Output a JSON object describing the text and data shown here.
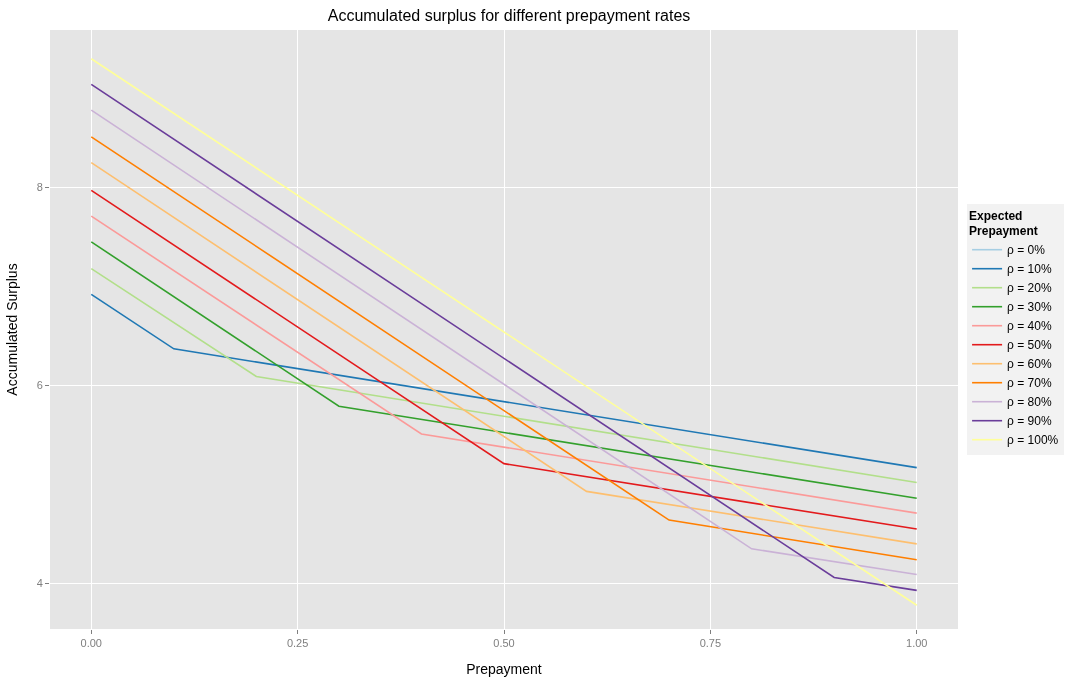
{
  "chart_data": {
    "type": "line",
    "title": "Accumulated surplus for different prepayment rates",
    "xlabel": "Prepayment",
    "ylabel": "Accumulated Surplus",
    "legend_title": "Expected\nPrepayment",
    "xlim": [
      -0.05,
      1.05
    ],
    "ylim": [
      3.54,
      9.59
    ],
    "xticks": [
      {
        "value": 0,
        "label": "0.00"
      },
      {
        "value": 0.25,
        "label": "0.25"
      },
      {
        "value": 0.5,
        "label": "0.50"
      },
      {
        "value": 0.75,
        "label": "0.75"
      },
      {
        "value": 1,
        "label": "1.00"
      }
    ],
    "yticks": [
      4,
      6,
      8
    ],
    "grid": true,
    "legend": "right",
    "line_style": "solid",
    "marker": "none",
    "series": [
      {
        "name": "ρ = 0%",
        "color": "#a6cee3",
        "values": [
          null
        ]
      },
      {
        "name": "ρ = 10%",
        "color": "#1f78b4",
        "x": [
          0,
          0.1,
          1
        ],
        "values": [
          6.92,
          6.37,
          5.17
        ]
      },
      {
        "name": "ρ = 20%",
        "color": "#b2df8a",
        "x": [
          0,
          0.2,
          1
        ],
        "values": [
          7.18,
          6.09,
          5.02
        ]
      },
      {
        "name": "ρ = 30%",
        "color": "#33a02c",
        "x": [
          0,
          0.3,
          1
        ],
        "values": [
          7.45,
          5.79,
          4.86
        ]
      },
      {
        "name": "ρ = 40%",
        "color": "#fb9a99",
        "x": [
          0,
          0.4,
          1
        ],
        "values": [
          7.71,
          5.51,
          4.71
        ]
      },
      {
        "name": "ρ = 50%",
        "color": "#e31a1c",
        "x": [
          0,
          0.5,
          1
        ],
        "values": [
          7.97,
          5.21,
          4.55
        ]
      },
      {
        "name": "ρ = 60%",
        "color": "#fdbf6f",
        "x": [
          0,
          0.6,
          1
        ],
        "values": [
          8.25,
          4.93,
          4.4
        ]
      },
      {
        "name": "ρ = 70%",
        "color": "#ff7f00",
        "x": [
          0,
          0.7,
          1
        ],
        "values": [
          8.51,
          4.64,
          4.24
        ]
      },
      {
        "name": "ρ = 80%",
        "color": "#cab2d6",
        "x": [
          0,
          0.8,
          1
        ],
        "values": [
          8.78,
          4.35,
          4.09
        ]
      },
      {
        "name": "ρ = 90%",
        "color": "#6a3d9a",
        "x": [
          0,
          0.9,
          1
        ],
        "values": [
          9.04,
          4.06,
          3.93
        ]
      },
      {
        "name": "ρ = 100%",
        "color": "#ffff99",
        "x": [
          0,
          1
        ],
        "values": [
          9.3,
          3.78
        ]
      }
    ]
  }
}
